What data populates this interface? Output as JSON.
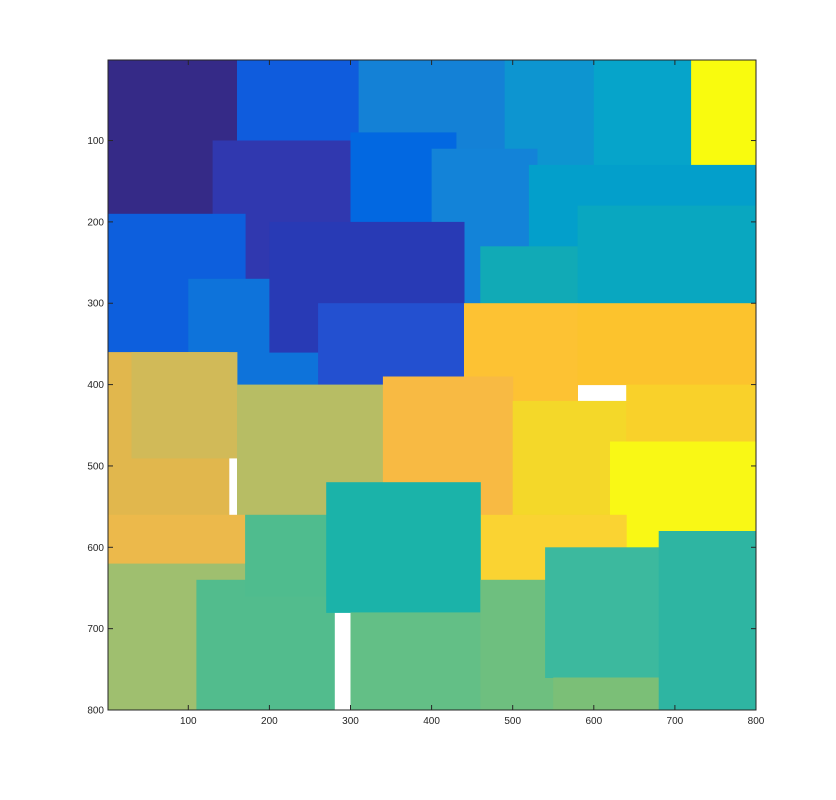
{
  "chart_data": {
    "type": "heatmap",
    "title": "",
    "xlabel": "",
    "ylabel": "",
    "xlim": [
      1,
      800
    ],
    "ylim": [
      1,
      800
    ],
    "y_direction": "reverse",
    "colormap": "parula",
    "grid": false,
    "x_ticks": [
      100,
      200,
      300,
      400,
      500,
      600,
      700,
      800
    ],
    "y_ticks": [
      100,
      200,
      300,
      400,
      500,
      600,
      700,
      800
    ],
    "x_tick_labels": [
      "100",
      "200",
      "300",
      "400",
      "500",
      "600",
      "700",
      "800"
    ],
    "y_tick_labels": [
      "100",
      "200",
      "300",
      "400",
      "500",
      "600",
      "700",
      "800"
    ],
    "regions": [
      {
        "x": [
          1,
          190
        ],
        "y": [
          1,
          190
        ],
        "color": "#352a87"
      },
      {
        "x": [
          160,
          330
        ],
        "y": [
          1,
          120
        ],
        "color": "#0f5cdd"
      },
      {
        "x": [
          310,
          600
        ],
        "y": [
          1,
          120
        ],
        "color": "#1481d6"
      },
      {
        "x": [
          490,
          720
        ],
        "y": [
          1,
          150
        ],
        "color": "#0d95d0"
      },
      {
        "x": [
          600,
          720
        ],
        "y": [
          1,
          160
        ],
        "color": "#06a4ca"
      },
      {
        "x": [
          720,
          800
        ],
        "y": [
          1,
          150
        ],
        "color": "#f9fb0e"
      },
      {
        "x": [
          130,
          370
        ],
        "y": [
          100,
          280
        ],
        "color": "#3038af"
      },
      {
        "x": [
          300,
          430
        ],
        "y": [
          90,
          230
        ],
        "color": "#0268e1"
      },
      {
        "x": [
          400,
          530
        ],
        "y": [
          110,
          330
        ],
        "color": "#1383d8"
      },
      {
        "x": [
          520,
          800
        ],
        "y": [
          130,
          300
        ],
        "color": "#039fcb"
      },
      {
        "x": [
          1,
          170
        ],
        "y": [
          190,
          360
        ],
        "color": "#0d5fdd"
      },
      {
        "x": [
          100,
          280
        ],
        "y": [
          270,
          410
        ],
        "color": "#0e73da"
      },
      {
        "x": [
          200,
          440
        ],
        "y": [
          200,
          360
        ],
        "color": "#283ab5"
      },
      {
        "x": [
          260,
          440
        ],
        "y": [
          300,
          400
        ],
        "color": "#2350d0"
      },
      {
        "x": [
          460,
          580
        ],
        "y": [
          230,
          380
        ],
        "color": "#11aab6"
      },
      {
        "x": [
          580,
          800
        ],
        "y": [
          180,
          360
        ],
        "color": "#09a7c0"
      },
      {
        "x": [
          440,
          580
        ],
        "y": [
          300,
          430
        ],
        "color": "#fdc233"
      },
      {
        "x": [
          580,
          800
        ],
        "y": [
          300,
          400
        ],
        "color": "#fcc32d"
      },
      {
        "x": [
          1,
          150
        ],
        "y": [
          360,
          570
        ],
        "color": "#e1b74d"
      },
      {
        "x": [
          30,
          160
        ],
        "y": [
          360,
          490
        ],
        "color": "#d1ba58"
      },
      {
        "x": [
          160,
          340
        ],
        "y": [
          400,
          580
        ],
        "color": "#b7bd64"
      },
      {
        "x": [
          340,
          500
        ],
        "y": [
          390,
          560
        ],
        "color": "#f8ba43"
      },
      {
        "x": [
          500,
          640
        ],
        "y": [
          420,
          590
        ],
        "color": "#f4d829"
      },
      {
        "x": [
          640,
          800
        ],
        "y": [
          400,
          470
        ],
        "color": "#f9d12a"
      },
      {
        "x": [
          620,
          800
        ],
        "y": [
          470,
          600
        ],
        "color": "#f9f815"
      },
      {
        "x": [
          450,
          640
        ],
        "y": [
          560,
          640
        ],
        "color": "#fad332"
      },
      {
        "x": [
          1,
          170
        ],
        "y": [
          560,
          640
        ],
        "color": "#ecb94b"
      },
      {
        "x": [
          1,
          170
        ],
        "y": [
          620,
          800
        ],
        "color": "#9fbf6f"
      },
      {
        "x": [
          110,
          280
        ],
        "y": [
          640,
          800
        ],
        "color": "#52bc8d"
      },
      {
        "x": [
          170,
          280
        ],
        "y": [
          560,
          660
        ],
        "color": "#4fbc8e"
      },
      {
        "x": [
          270,
          460
        ],
        "y": [
          520,
          680
        ],
        "color": "#1bb3a9"
      },
      {
        "x": [
          300,
          460
        ],
        "y": [
          680,
          800
        ],
        "color": "#63bf86"
      },
      {
        "x": [
          460,
          550
        ],
        "y": [
          640,
          800
        ],
        "color": "#6ebf7f"
      },
      {
        "x": [
          540,
          690
        ],
        "y": [
          600,
          760
        ],
        "color": "#3cb99e"
      },
      {
        "x": [
          550,
          690
        ],
        "y": [
          760,
          800
        ],
        "color": "#7bbf77"
      },
      {
        "x": [
          680,
          800
        ],
        "y": [
          580,
          800
        ],
        "color": "#2eb5a2"
      }
    ]
  }
}
